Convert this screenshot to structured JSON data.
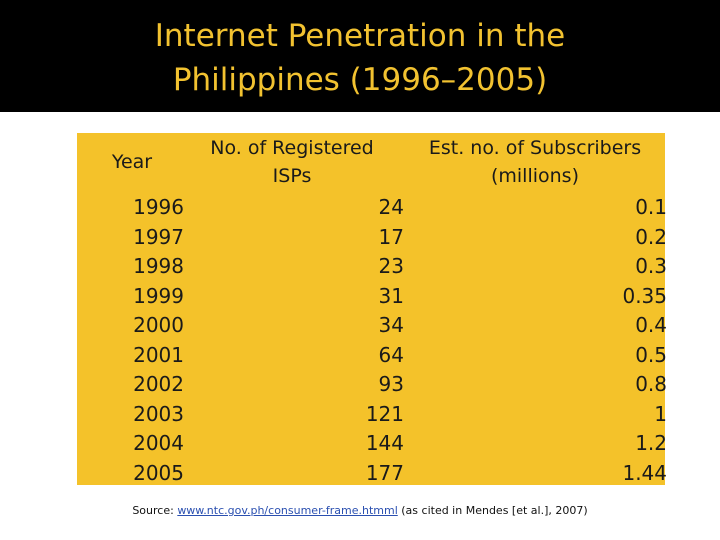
{
  "slide": {
    "title_line1": "Internet Penetration in the",
    "title_line2": "Philippines (1996–2005)"
  },
  "table": {
    "headers": {
      "year": "Year",
      "isps_line1": "No. of Registered",
      "isps_line2": "ISPs",
      "subs_line1": "Est. no. of Subscribers",
      "subs_line2": "(millions)"
    },
    "rows": [
      {
        "year": "1996",
        "isps": "24",
        "subs": "0.1"
      },
      {
        "year": "1997",
        "isps": "17",
        "subs": "0.2"
      },
      {
        "year": "1998",
        "isps": "23",
        "subs": "0.3"
      },
      {
        "year": "1999",
        "isps": "31",
        "subs": "0.35"
      },
      {
        "year": "2000",
        "isps": "34",
        "subs": "0.4"
      },
      {
        "year": "2001",
        "isps": "64",
        "subs": "0.5"
      },
      {
        "year": "2002",
        "isps": "93",
        "subs": "0.8"
      },
      {
        "year": "2003",
        "isps": "121",
        "subs": "1"
      },
      {
        "year": "2004",
        "isps": "144",
        "subs": "1.2"
      },
      {
        "year": "2005",
        "isps": "177",
        "subs": "1.44"
      }
    ]
  },
  "source": {
    "prefix": "Source: ",
    "link": "www.ntc.gov.ph/consumer-frame.htmml",
    "suffix": " (as cited in Mendes [et al.], 2007)"
  },
  "colors": {
    "title_bar": "#000000",
    "title_text": "#f2c230",
    "table_bg": "#f4c22a"
  }
}
